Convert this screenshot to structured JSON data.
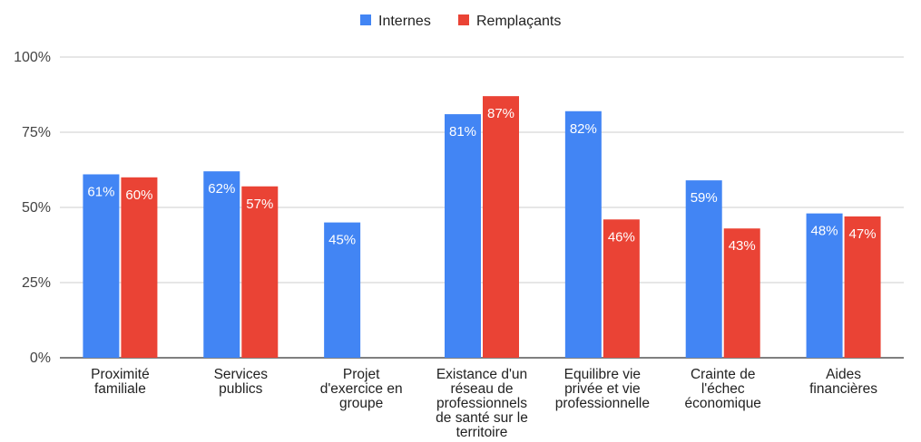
{
  "chart_data": {
    "type": "bar",
    "categories": [
      [
        "Proximité",
        "familiale"
      ],
      [
        "Services",
        "publics"
      ],
      [
        "Projet",
        "d'exercice en",
        "groupe"
      ],
      [
        "Existance d'un",
        "réseau de",
        "professionnels",
        "de santé sur le",
        "territoire"
      ],
      [
        "Equilibre vie",
        "privée et vie",
        "professionnelle"
      ],
      [
        "Crainte de",
        "l'échec",
        "économique"
      ],
      [
        "Aides",
        "financières"
      ]
    ],
    "series": [
      {
        "name": "Internes",
        "color": "#4285F4",
        "values": [
          61,
          62,
          45,
          81,
          82,
          59,
          48
        ],
        "labels": [
          "61%",
          "62%",
          "45%",
          "81%",
          "82%",
          "59%",
          "48%"
        ]
      },
      {
        "name": "Remplaçants",
        "color": "#EA4335",
        "values": [
          60,
          57,
          null,
          87,
          46,
          43,
          47
        ],
        "labels": [
          "60%",
          "57%",
          "",
          "87%",
          "46%",
          "43%",
          "47%"
        ]
      }
    ],
    "yticks": [
      0,
      25,
      50,
      75,
      100
    ],
    "ytick_labels": [
      "0%",
      "25%",
      "50%",
      "75%",
      "100%"
    ],
    "ylim": [
      0,
      100
    ],
    "legend_position": "top",
    "grid": true
  }
}
